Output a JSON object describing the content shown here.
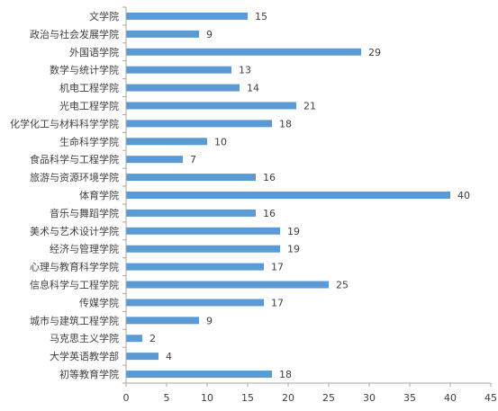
{
  "chart_data": {
    "type": "bar",
    "orientation": "horizontal",
    "title": "",
    "xlabel": "",
    "ylabel": "",
    "categories": [
      "文学院",
      "政治与社会发展学院",
      "外国语学院",
      "数学与统计学院",
      "机电工程学院",
      "光电工程学院",
      "化学化工与材料科学学院",
      "生命科学学院",
      "食品科学与工程学院",
      "旅游与资源环境学院",
      "体育学院",
      "音乐与舞蹈学院",
      "美术与艺术设计学院",
      "经济与管理学院",
      "心理与教育科学学院",
      "信息科学与工程学院",
      "传媒学院",
      "城市与建筑工程学院",
      "马克思主义学院",
      "大学英语教学部",
      "初等教育学院"
    ],
    "values": [
      15,
      9,
      29,
      13,
      14,
      21,
      18,
      10,
      7,
      16,
      40,
      16,
      19,
      19,
      17,
      25,
      17,
      9,
      2,
      4,
      18
    ],
    "xlim": [
      0,
      45
    ],
    "xticks": [
      0,
      5,
      10,
      15,
      20,
      25,
      30,
      35,
      40,
      45
    ],
    "grid": false,
    "legend": "none",
    "data_labels": true,
    "bar_color": "#5b9bd5",
    "axis_color": "#a6a6a6",
    "text_color": "#404040"
  }
}
